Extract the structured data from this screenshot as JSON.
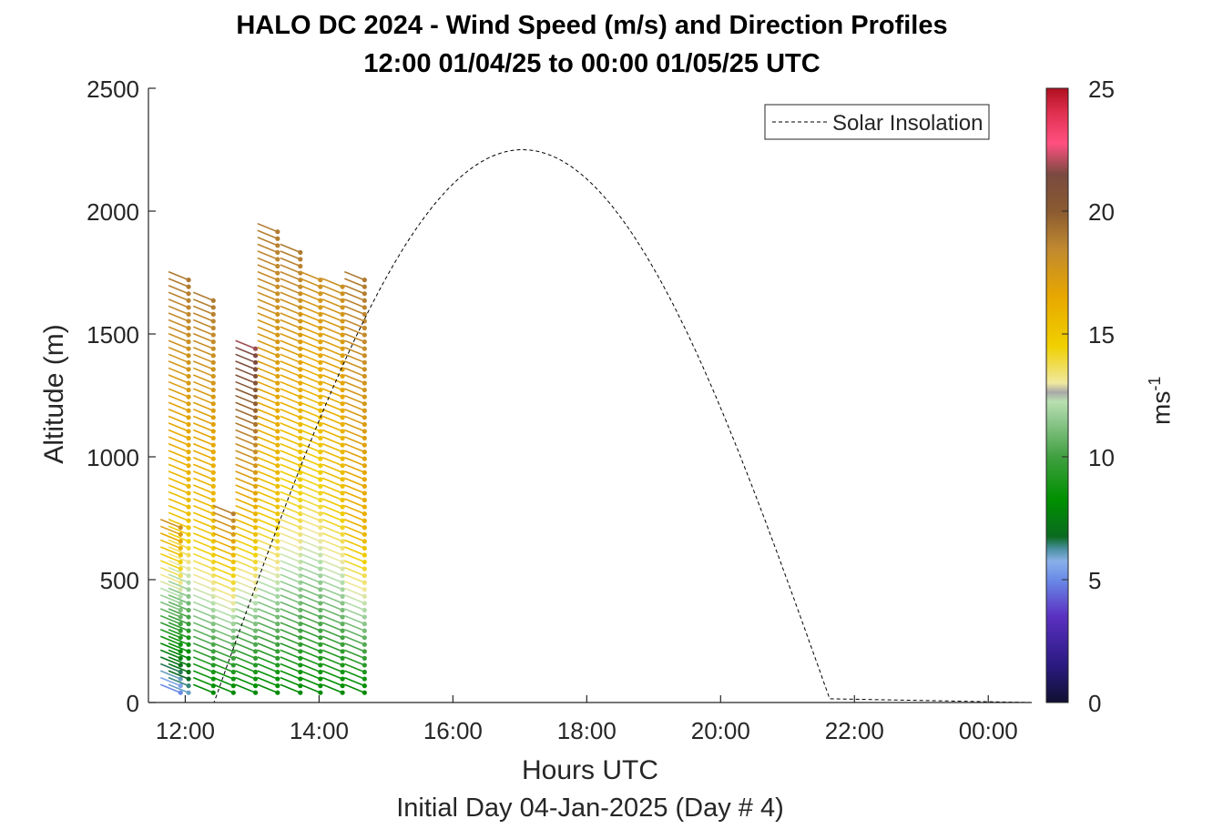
{
  "chart_data": {
    "type": "wind_barb_profile",
    "title": "HALO DC 2024 - Wind Speed (m/s) and Direction Profiles",
    "subtitle": "12:00 01/04/25 to 00:00 01/05/25  UTC",
    "xlabel": "Hours UTC",
    "caption": "Initial Day 04-Jan-2025 (Day # 4)",
    "ylabel": "Altitude (m)",
    "colorbar_label_base": "ms",
    "colorbar_label_exp": "-1",
    "xlim_hours": [
      11.45,
      24.65
    ],
    "ylim": [
      0,
      2500
    ],
    "x_ticks": [
      {
        "h": 12,
        "label": "12:00"
      },
      {
        "h": 14,
        "label": "14:00"
      },
      {
        "h": 16,
        "label": "16:00"
      },
      {
        "h": 18,
        "label": "18:00"
      },
      {
        "h": 20,
        "label": "20:00"
      },
      {
        "h": 22,
        "label": "22:00"
      },
      {
        "h": 24,
        "label": "00:00"
      }
    ],
    "y_ticks": [
      0,
      500,
      1000,
      1500,
      2000,
      2500
    ],
    "colorbar_ticks": [
      0,
      5,
      10,
      15,
      20,
      25
    ],
    "colorbar_range": [
      0,
      25
    ],
    "legend": {
      "label": "Solar Insolation",
      "position": "top-right"
    },
    "solar_insolation": {
      "rise_hour": 12.43,
      "peak_hour": 17.08,
      "set_hour": 21.65,
      "peak_altitude": 2250
    },
    "profiles": [
      {
        "time": 11.93,
        "altitudes": [
          40,
          720
        ],
        "mid": 640,
        "speed_low": 5,
        "speed_mid": 16,
        "speed_high": 18,
        "direction": 300
      },
      {
        "time": 12.05,
        "altitudes": [
          40,
          1720
        ],
        "mid": 700,
        "speed_low": 6,
        "speed_mid": 15,
        "speed_high": 19,
        "direction": 300
      },
      {
        "time": 12.42,
        "altitudes": [
          40,
          1660
        ],
        "mid": 650,
        "speed_low": 8,
        "speed_mid": 15,
        "speed_high": 19,
        "direction": 300
      },
      {
        "time": 12.72,
        "altitudes": [
          40,
          780
        ],
        "mid": 560,
        "speed_low": 8,
        "speed_mid": 15,
        "speed_high": 19,
        "direction": 300
      },
      {
        "time": 13.05,
        "altitudes": [
          40,
          1460
        ],
        "mid": 650,
        "speed_low": 8,
        "speed_mid": 15,
        "speed_high": 22,
        "direction": 300
      },
      {
        "time": 13.38,
        "altitudes": [
          40,
          1940
        ],
        "mid": 750,
        "speed_low": 8,
        "speed_mid": 15,
        "speed_high": 19,
        "direction": 300
      },
      {
        "time": 13.72,
        "altitudes": [
          40,
          1840
        ],
        "mid": 750,
        "speed_low": 8,
        "speed_mid": 14,
        "speed_high": 19,
        "direction": 300
      },
      {
        "time": 14.02,
        "altitudes": [
          40,
          1740
        ],
        "mid": 800,
        "speed_low": 8,
        "speed_mid": 14,
        "speed_high": 18,
        "direction": 300
      },
      {
        "time": 14.35,
        "altitudes": [
          40,
          1700
        ],
        "mid": 800,
        "speed_low": 8,
        "speed_mid": 15,
        "speed_high": 18,
        "direction": 300
      },
      {
        "time": 14.68,
        "altitudes": [
          40,
          1720
        ],
        "mid": 700,
        "speed_low": 8,
        "speed_mid": 16,
        "speed_high": 19,
        "direction": 300
      }
    ]
  }
}
